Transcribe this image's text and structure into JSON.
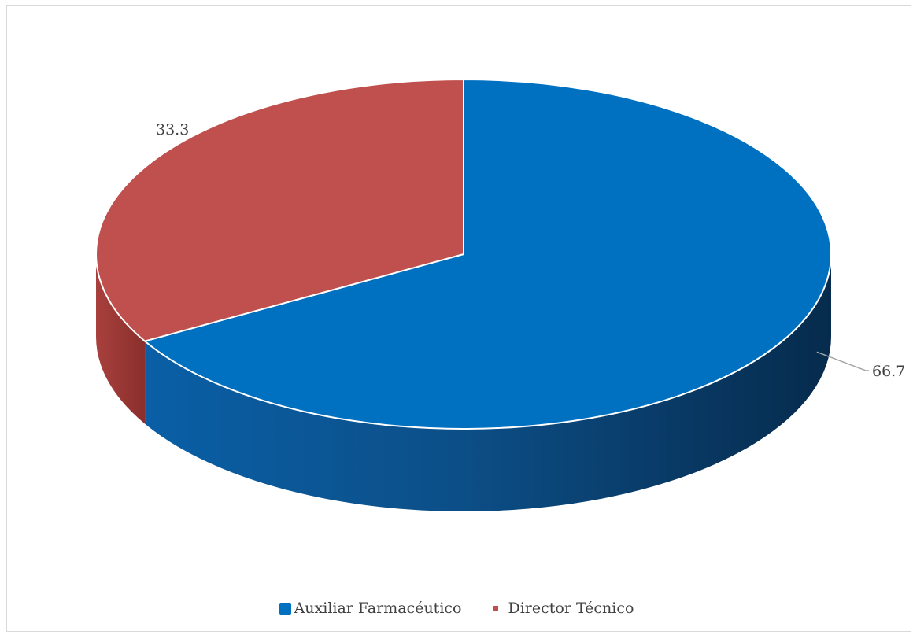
{
  "chart_data": {
    "type": "pie",
    "style": "3d",
    "categories": [
      "Auxiliar Farmacéutico",
      "Director Técnico"
    ],
    "values": [
      66.7,
      33.3
    ],
    "data_labels": [
      "66.7",
      "33.3"
    ],
    "colors": [
      "#0070c0",
      "#c0504d"
    ],
    "title": "",
    "legend_position": "bottom"
  }
}
